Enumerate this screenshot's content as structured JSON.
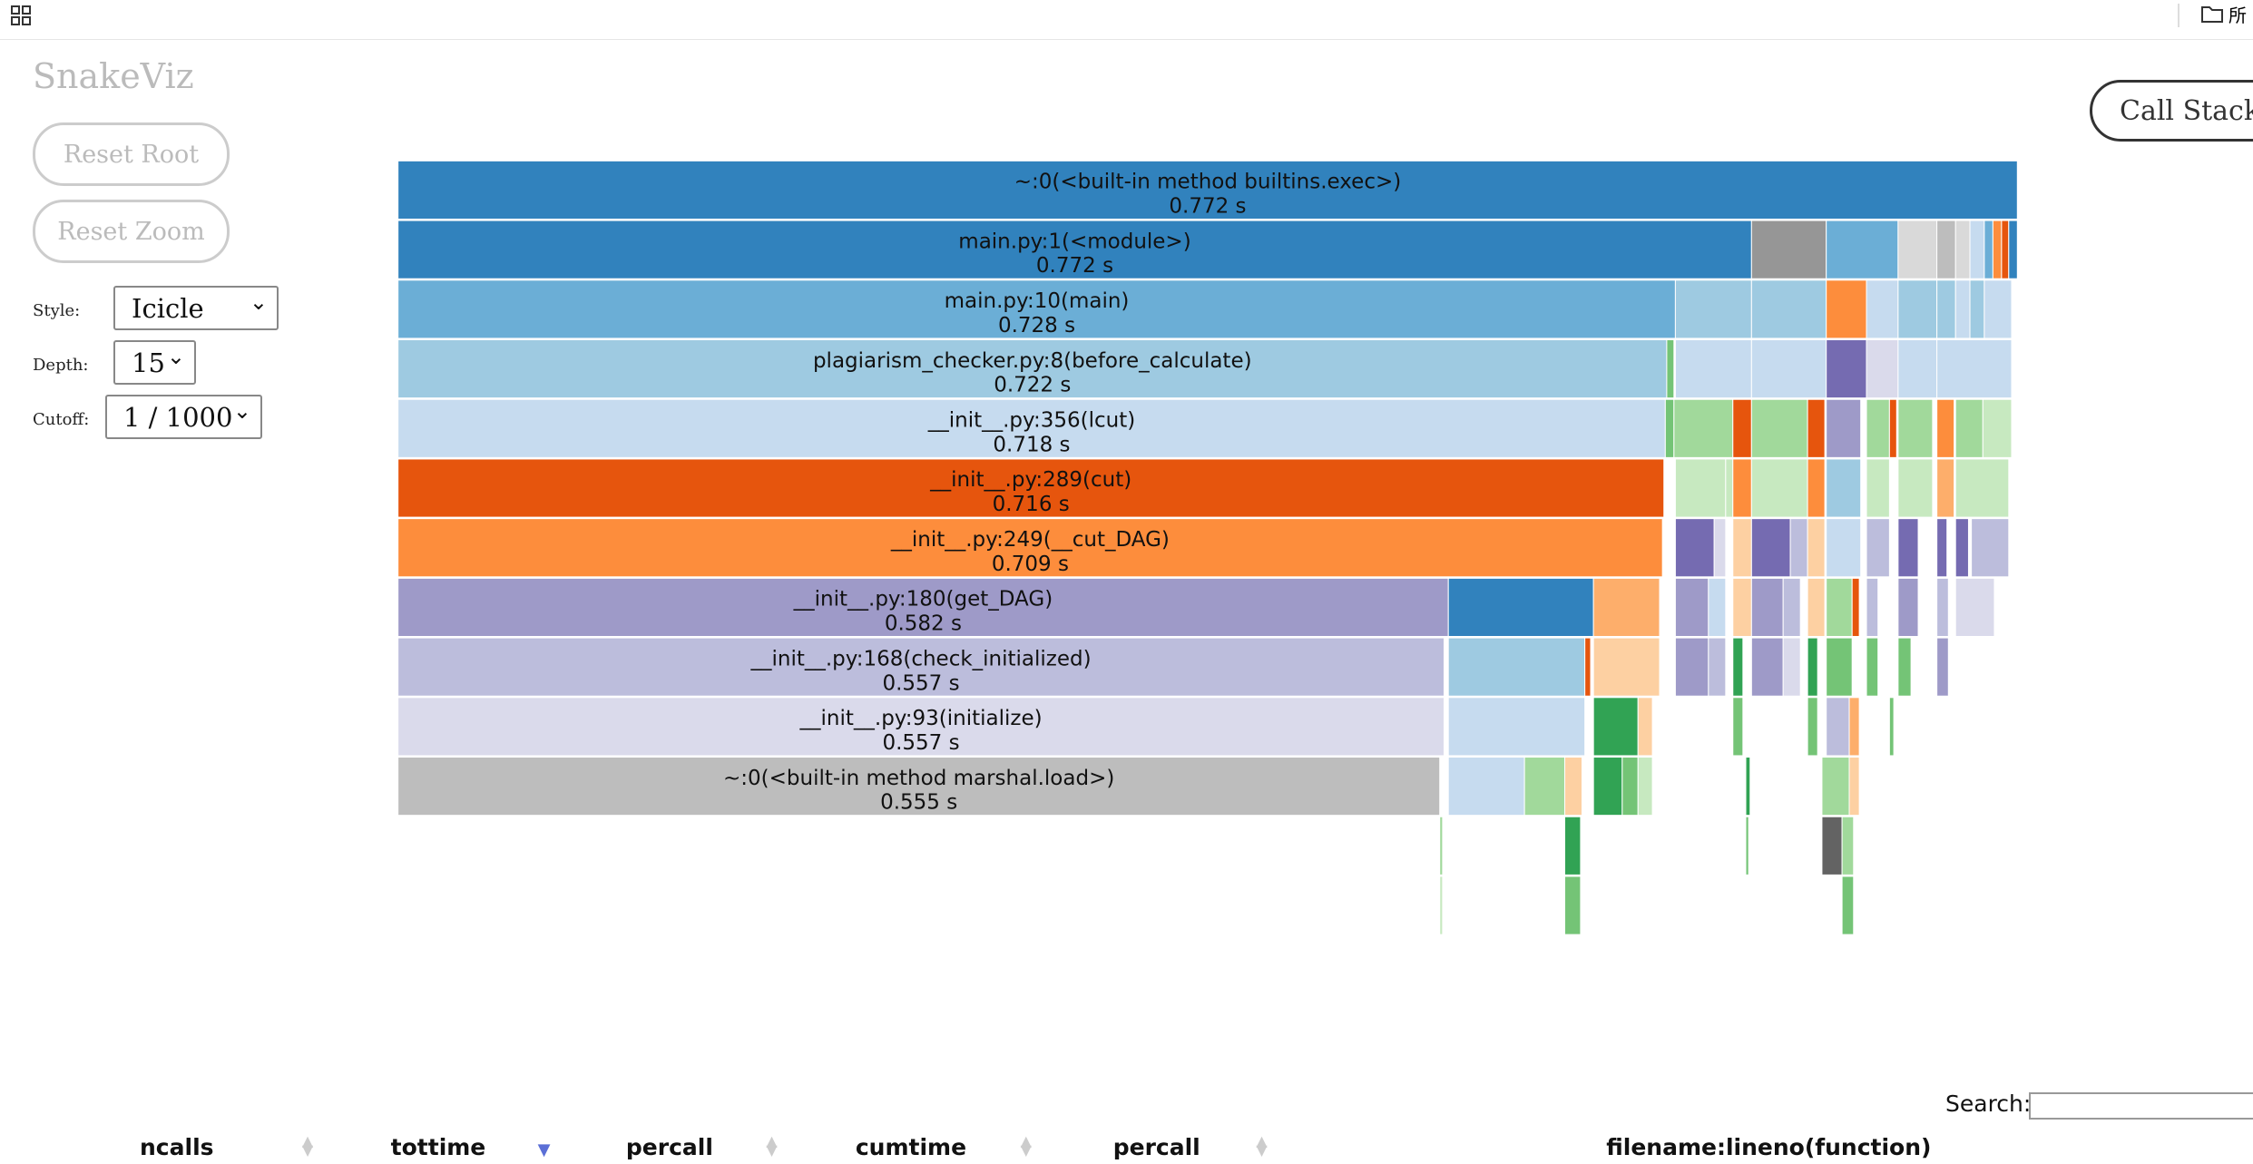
{
  "toolbar": {
    "folder_label": "所"
  },
  "sidebar": {
    "title": "SnakeViz",
    "buttons": [
      "Reset Root",
      "Reset Zoom"
    ],
    "style_label": "Style:",
    "style_value": "Icicle",
    "depth_label": "Depth:",
    "depth_value": 15,
    "cutoff_label": "Cutoff:",
    "cutoff_value": "1 / 1000"
  },
  "call_stack_button": "Call Stack",
  "icicle": {
    "rows": [
      {
        "label": "~:0(<built-in method builtins.exec>)",
        "time": "0.772 s",
        "color": "#3182bd"
      },
      {
        "label": "main.py:1(<module>)",
        "time": "0.772 s",
        "color": "#3182bd"
      },
      {
        "label": "main.py:10(main)",
        "time": "0.728 s",
        "color": "#6baed6"
      },
      {
        "label": "plagiarism_checker.py:8(before_calculate)",
        "time": "0.722 s",
        "color": "#9ecae1"
      },
      {
        "label": "__init__.py:356(lcut)",
        "time": "0.718 s",
        "color": "#c6dbef"
      },
      {
        "label": "__init__.py:289(cut)",
        "time": "0.716 s",
        "color": "#e6550d"
      },
      {
        "label": "__init__.py:249(__cut_DAG)",
        "time": "0.709 s",
        "color": "#fd8d3c"
      },
      {
        "label": "__init__.py:180(get_DAG)",
        "time": "0.582 s",
        "color": "#9e9ac8"
      },
      {
        "label": "__init__.py:168(check_initialized)",
        "time": "0.557 s",
        "color": "#bcbddc"
      },
      {
        "label": "__init__.py:93(initialize)",
        "time": "0.557 s",
        "color": "#dadaeb"
      },
      {
        "label": "~:0(<built-in method marshal.load>)",
        "time": "0.555 s",
        "color": "#bdbdbd"
      }
    ]
  },
  "table": {
    "search_label": "Search:",
    "columns": [
      "ncalls",
      "tottime",
      "percall",
      "cumtime",
      "percall",
      "filename:lineno(function)"
    ]
  }
}
